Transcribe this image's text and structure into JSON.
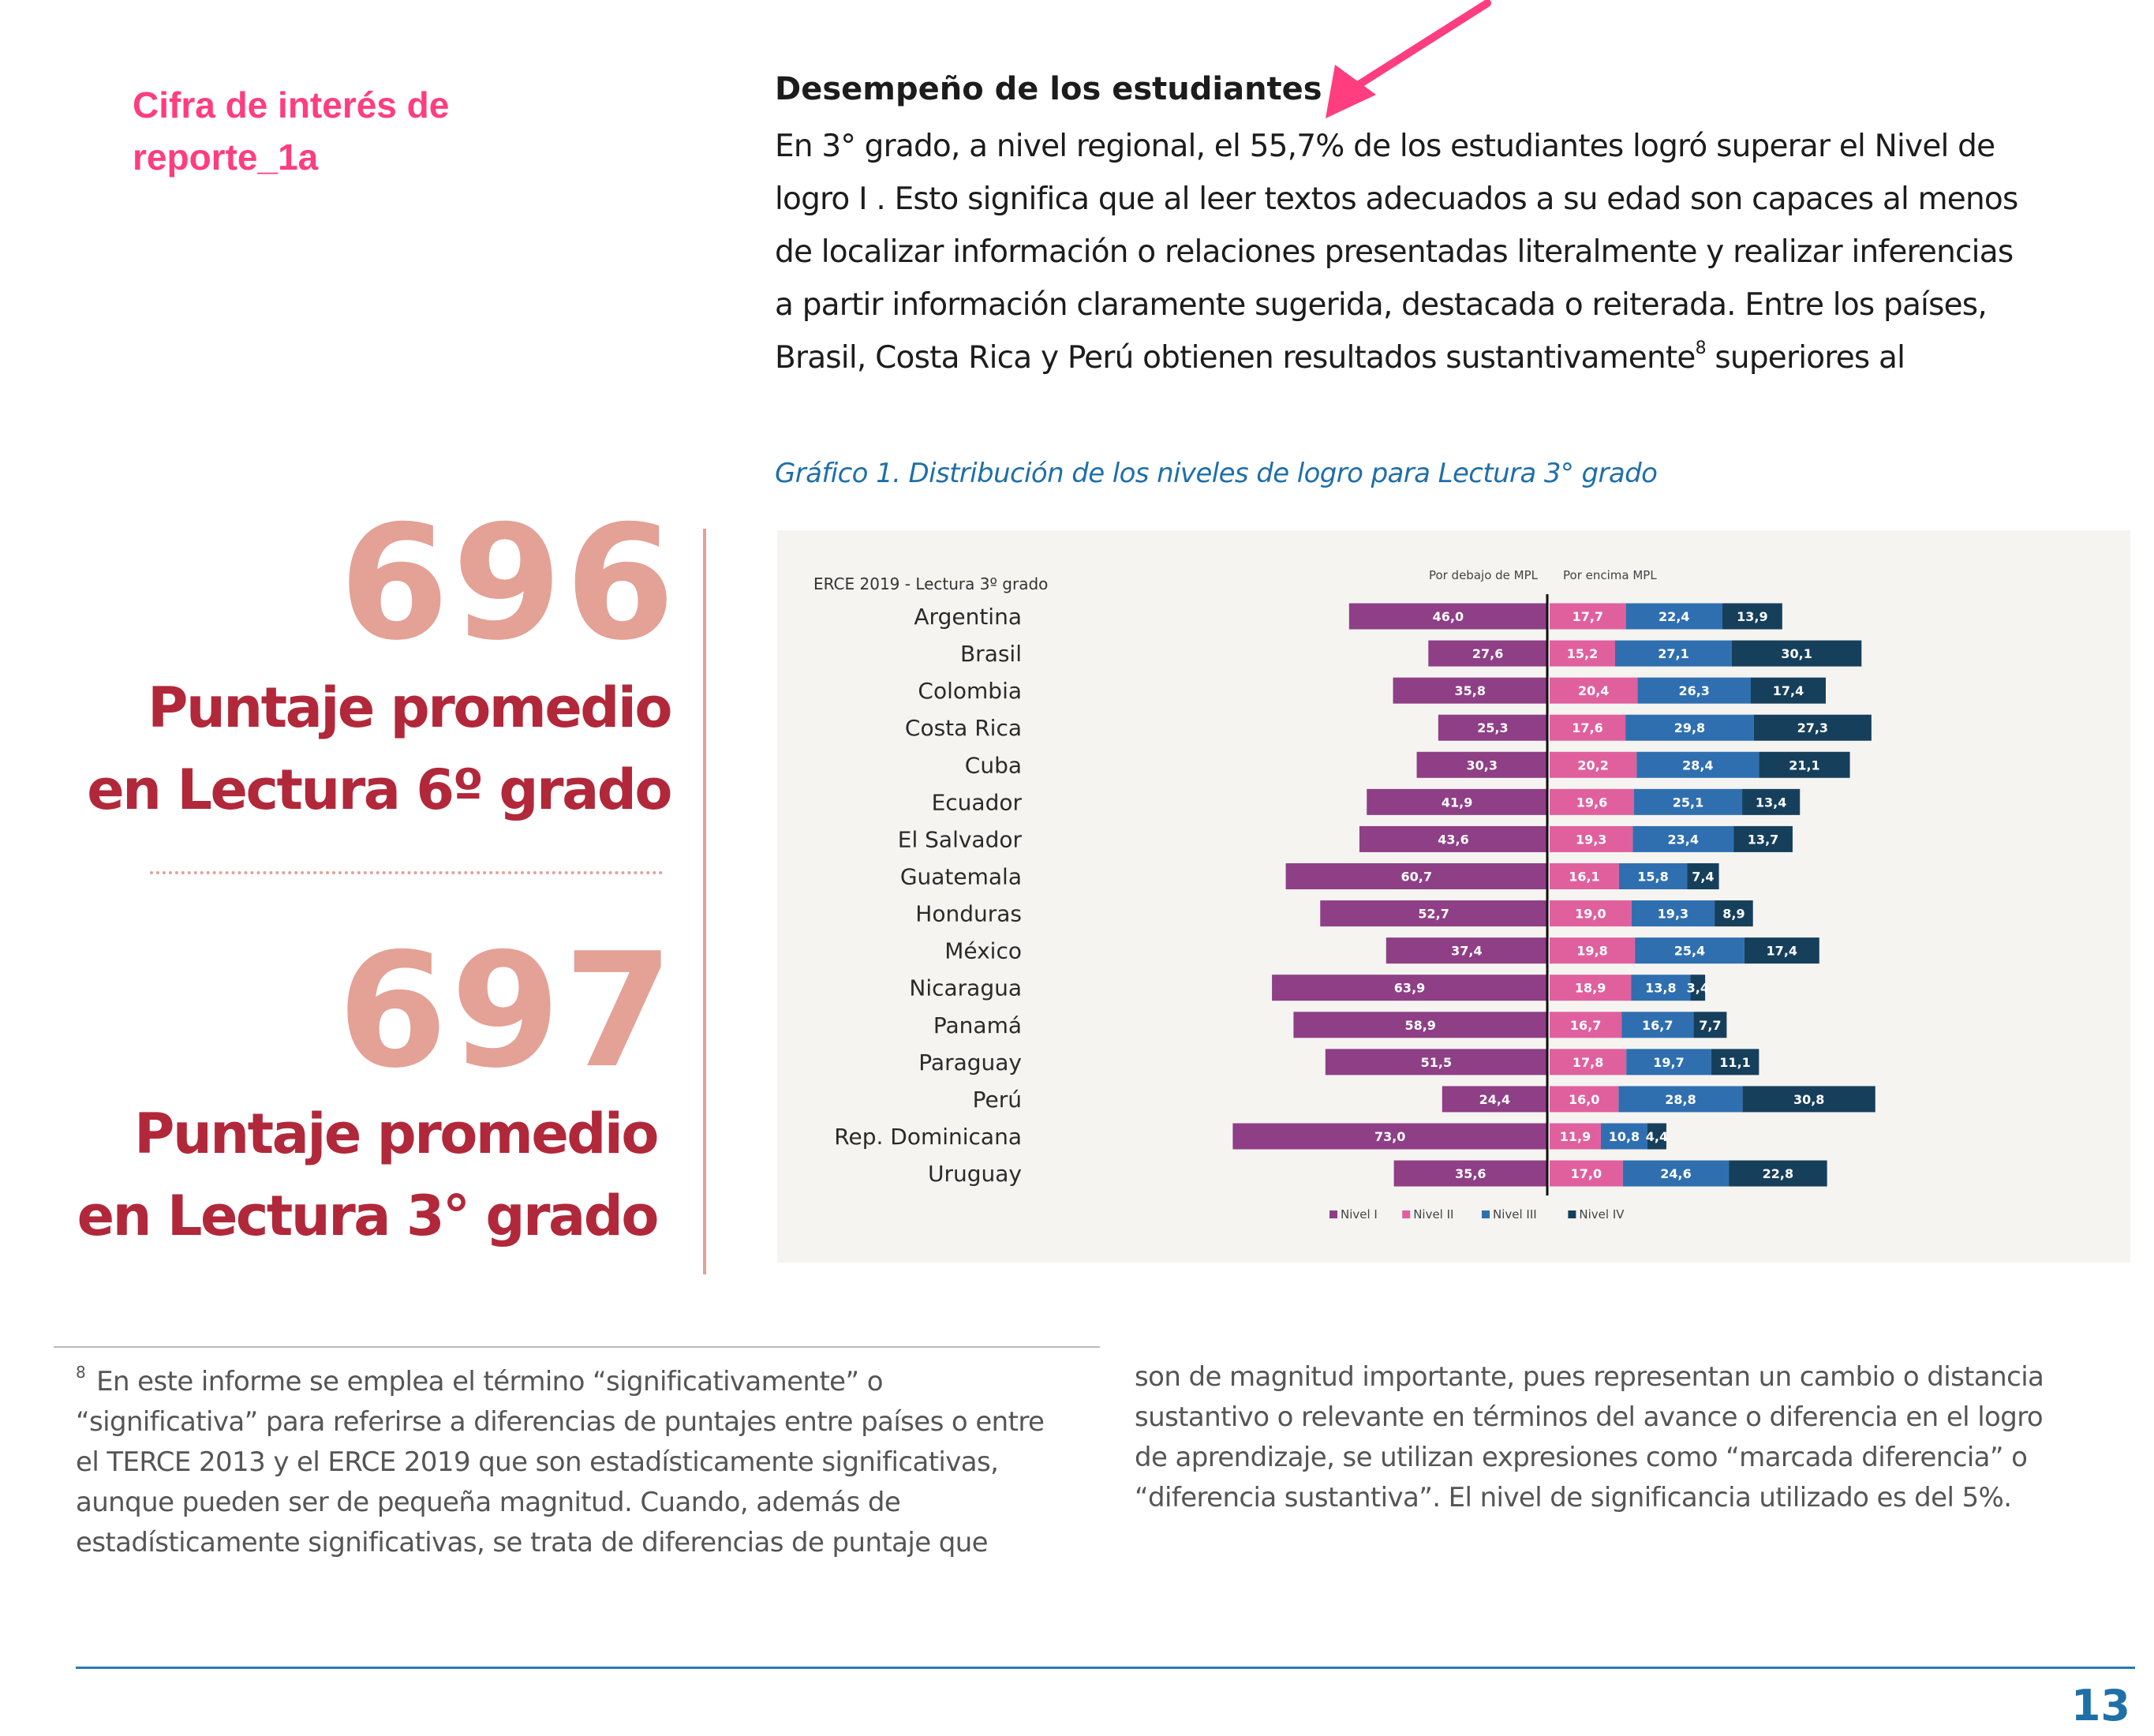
{
  "annotation": {
    "line1": "Cifra de interés de",
    "line2": "reporte_1a",
    "arrow_color": "#ff3d7f"
  },
  "section": {
    "title": "Desempeño de los estudiantes",
    "lines": [
      "En 3° grado, a nivel regional, el 55,7% de los estudiantes logró superar el Nivel de",
      "logro I . Esto significa que al leer textos adecuados a su edad son capaces al menos",
      "de localizar información o relaciones presentadas literalmente y realizar inferencias",
      "a partir información claramente sugerida, destacada o reiterada. Entre los países,"
    ],
    "last_line_before": "Brasil, Costa Rica y Perú obtienen resultados sustantivamente",
    "footnote_ref": "8",
    "last_line_after": " superiores al"
  },
  "stats": {
    "stat1_value": "696",
    "stat1_label_line1": "Puntaje promedio",
    "stat1_label_line2": "en Lectura 6º grado",
    "stat2_value": "697",
    "stat2_label_line1": "Puntaje promedio",
    "stat2_label_line2": "en Lectura 3° grado",
    "number_color": "#e4a196",
    "label_color": "#b1283a"
  },
  "chart_title": "Gráfico 1. Distribución de los niveles de logro para Lectura 3° grado",
  "chart_data": {
    "type": "bar",
    "orientation": "horizontal-diverging",
    "stacked": true,
    "title": "ERCE 2019  - Lectura 3º grado",
    "left_label": "Por debajo de MPL",
    "right_label": "Por encima MPL",
    "categories": [
      "Argentina",
      "Brasil",
      "Colombia",
      "Costa Rica",
      "Cuba",
      "Ecuador",
      "El Salvador",
      "Guatemala",
      "Honduras",
      "México",
      "Nicaragua",
      "Panamá",
      "Paraguay",
      "Perú",
      "Rep. Dominicana",
      "Uruguay"
    ],
    "series": [
      {
        "name": "Nivel I",
        "color": "#8e3f86",
        "side": "left",
        "values": [
          46.0,
          27.6,
          35.8,
          25.3,
          30.3,
          41.9,
          43.6,
          60.7,
          52.7,
          37.4,
          63.9,
          58.9,
          51.5,
          24.4,
          73.0,
          35.6
        ],
        "labels": [
          "46,0",
          "27,6",
          "35,8",
          "25,3",
          "30,3",
          "41,9",
          "43,6",
          "60,7",
          "52,7",
          "37,4",
          "63,9",
          "58,9",
          "51,5",
          "24,4",
          "73,0",
          "35,6"
        ]
      },
      {
        "name": "Nivel II",
        "color": "#e0609e",
        "side": "right",
        "values": [
          17.7,
          15.2,
          20.4,
          17.6,
          20.2,
          19.6,
          19.3,
          16.1,
          19.0,
          19.8,
          18.9,
          16.7,
          17.8,
          16.0,
          11.9,
          17.0
        ],
        "labels": [
          "17,7",
          "15,2",
          "20,4",
          "17,6",
          "20,2",
          "19,6",
          "19,3",
          "16,1",
          "19,0",
          "19,8",
          "18,9",
          "16,7",
          "17,8",
          "16,0",
          "11,9",
          "17,0"
        ]
      },
      {
        "name": "Nivel III",
        "color": "#2f6fb0",
        "side": "right",
        "values": [
          22.4,
          27.1,
          26.3,
          29.8,
          28.4,
          25.1,
          23.4,
          15.8,
          19.3,
          25.4,
          13.8,
          16.7,
          19.7,
          28.8,
          10.8,
          24.6
        ],
        "labels": [
          "22,4",
          "27,1",
          "26,3",
          "29,8",
          "28,4",
          "25,1",
          "23,4",
          "15,8",
          "19,3",
          "25,4",
          "13,8",
          "16,7",
          "19,7",
          "28,8",
          "10,8",
          "24,6"
        ]
      },
      {
        "name": "Nivel IV",
        "color": "#163f5c",
        "side": "right",
        "values": [
          13.9,
          30.1,
          17.4,
          27.3,
          21.1,
          13.4,
          13.7,
          7.4,
          8.9,
          17.4,
          3.4,
          7.7,
          11.1,
          30.8,
          4.4,
          22.8
        ],
        "labels": [
          "13,9",
          "30,1",
          "17,4",
          "27,3",
          "21,1",
          "13,4",
          "13,7",
          "7,4",
          "8,9",
          "17,4",
          "3,4",
          "7,7",
          "11,1",
          "30,8",
          "4,4",
          "22,8"
        ]
      }
    ],
    "legend": "bottom-center",
    "grid": false
  },
  "footnote": {
    "marker": "8",
    "left_lines": [
      "En este informe se emplea el término “significativamente” o",
      "“significativa” para referirse a diferencias de puntajes entre países o entre",
      "el TERCE 2013 y el ERCE 2019 que son estadísticamente significativas,",
      "aunque pueden ser de pequeña magnitud. Cuando, además de",
      "estadísticamente significativas, se trata de diferencias de puntaje que"
    ],
    "right_lines": [
      "son de magnitud importante, pues representan un cambio o distancia",
      "sustantivo o relevante en términos del avance o diferencia en el logro",
      "de aprendizaje, se utilizan expresiones como “marcada diferencia” o",
      "“diferencia sustantiva”. El nivel de significancia utilizado es del 5%."
    ]
  },
  "page_number": "13"
}
